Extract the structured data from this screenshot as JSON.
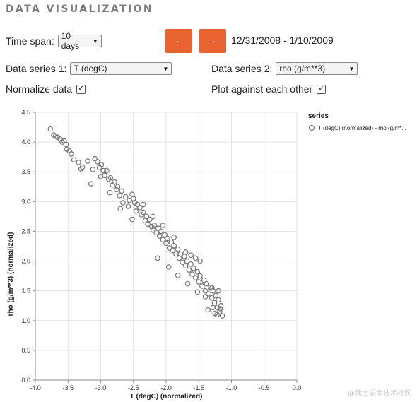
{
  "section_title": "DATA VISUALIZATION",
  "controls": {
    "time_span_label": "Time span:",
    "time_span_value": "10 days",
    "date_range": "12/31/2008 - 1/10/2009",
    "series1_label": "Data series 1:",
    "series1_value": "T (degC)",
    "series2_label": "Data series 2:",
    "series2_value": "rho (g/m**3)",
    "normalize_label": "Normalize data",
    "normalize_checked": true,
    "plot_against_label": "Plot against each other",
    "plot_against_checked": true,
    "prev_icon": "arrow-left-icon",
    "next_icon": "arrow-right-icon",
    "accent_color": "#e8632f"
  },
  "chart_data": {
    "type": "scatter",
    "xlabel": "T (degC) (normalized)",
    "ylabel": "rho (g/m**3) (normalized)",
    "xlim": [
      -4.0,
      0.0
    ],
    "ylim": [
      0.0,
      4.5
    ],
    "xticks": [
      "-4.0",
      "-3.5",
      "-3.0",
      "-2.5",
      "-2.0",
      "-1.5",
      "-1.0",
      "-0.5",
      "0.0"
    ],
    "yticks": [
      "0.0",
      "0.5",
      "1.0",
      "1.5",
      "2.0",
      "2.5",
      "3.0",
      "3.5",
      "4.0",
      "4.5"
    ],
    "grid": true,
    "legend_title": "series",
    "legend_position": "right",
    "marker_color": "#777777",
    "series": [
      {
        "name": "T (degC) (normalized) - rho (g/m*...",
        "points": [
          [
            -3.77,
            4.22
          ],
          [
            -3.72,
            4.12
          ],
          [
            -3.69,
            4.1
          ],
          [
            -3.66,
            4.08
          ],
          [
            -3.62,
            4.05
          ],
          [
            -3.59,
            4.0
          ],
          [
            -3.56,
            4.02
          ],
          [
            -3.53,
            3.96
          ],
          [
            -3.52,
            3.88
          ],
          [
            -3.45,
            3.8
          ],
          [
            -3.41,
            3.7
          ],
          [
            -3.34,
            3.66
          ],
          [
            -3.28,
            3.58
          ],
          [
            -3.2,
            3.68
          ],
          [
            -3.12,
            3.54
          ],
          [
            -3.09,
            3.72
          ],
          [
            -3.05,
            3.67
          ],
          [
            -3.02,
            3.57
          ],
          [
            -2.99,
            3.62
          ],
          [
            -2.96,
            3.52
          ],
          [
            -2.94,
            3.44
          ],
          [
            -2.91,
            3.52
          ],
          [
            -2.88,
            3.38
          ],
          [
            -2.85,
            3.4
          ],
          [
            -2.82,
            3.28
          ],
          [
            -2.79,
            3.33
          ],
          [
            -2.76,
            3.2
          ],
          [
            -2.74,
            3.25
          ],
          [
            -2.71,
            3.1
          ],
          [
            -2.68,
            3.18
          ],
          [
            -2.66,
            2.98
          ],
          [
            -2.62,
            3.08
          ],
          [
            -2.58,
            2.92
          ],
          [
            -2.56,
            3.02
          ],
          [
            -2.52,
            3.12
          ],
          [
            -2.5,
            3.05
          ],
          [
            -2.48,
            2.98
          ],
          [
            -2.46,
            2.84
          ],
          [
            -2.44,
            2.95
          ],
          [
            -2.4,
            2.9
          ],
          [
            -2.38,
            2.78
          ],
          [
            -2.35,
            2.82
          ],
          [
            -2.32,
            2.68
          ],
          [
            -2.3,
            2.75
          ],
          [
            -2.28,
            2.62
          ],
          [
            -2.25,
            2.7
          ],
          [
            -2.22,
            2.58
          ],
          [
            -2.2,
            2.52
          ],
          [
            -2.18,
            2.6
          ],
          [
            -2.15,
            2.48
          ],
          [
            -2.12,
            2.55
          ],
          [
            -2.1,
            2.42
          ],
          [
            -2.08,
            2.5
          ],
          [
            -2.05,
            2.36
          ],
          [
            -2.02,
            2.44
          ],
          [
            -2.0,
            2.3
          ],
          [
            -1.98,
            2.38
          ],
          [
            -1.95,
            2.22
          ],
          [
            -1.92,
            2.32
          ],
          [
            -1.9,
            2.18
          ],
          [
            -1.88,
            2.26
          ],
          [
            -1.85,
            2.12
          ],
          [
            -1.82,
            2.2
          ],
          [
            -1.8,
            2.05
          ],
          [
            -1.78,
            2.12
          ],
          [
            -1.75,
            1.98
          ],
          [
            -1.72,
            2.08
          ],
          [
            -1.7,
            1.92
          ],
          [
            -1.68,
            2.0
          ],
          [
            -1.65,
            1.85
          ],
          [
            -1.62,
            1.95
          ],
          [
            -1.6,
            1.78
          ],
          [
            -1.58,
            1.88
          ],
          [
            -1.55,
            1.72
          ],
          [
            -1.52,
            1.82
          ],
          [
            -1.5,
            1.65
          ],
          [
            -1.48,
            1.75
          ],
          [
            -1.45,
            1.58
          ],
          [
            -1.42,
            1.68
          ],
          [
            -1.4,
            1.5
          ],
          [
            -1.38,
            1.62
          ],
          [
            -1.35,
            1.45
          ],
          [
            -1.32,
            1.56
          ],
          [
            -1.3,
            1.38
          ],
          [
            -1.28,
            1.5
          ],
          [
            -1.26,
            1.3
          ],
          [
            -1.24,
            1.42
          ],
          [
            -1.22,
            1.22
          ],
          [
            -1.2,
            1.35
          ],
          [
            -1.18,
            1.15
          ],
          [
            -1.16,
            1.25
          ],
          [
            -1.14,
            1.08
          ],
          [
            -1.2,
            1.5
          ],
          [
            -1.25,
            1.12
          ],
          [
            -1.3,
            1.55
          ],
          [
            -1.48,
            2.0
          ],
          [
            -1.55,
            2.05
          ],
          [
            -1.62,
            2.1
          ],
          [
            -1.7,
            2.15
          ],
          [
            -1.88,
            2.4
          ],
          [
            -2.05,
            2.6
          ],
          [
            -2.2,
            2.75
          ],
          [
            -2.35,
            2.95
          ],
          [
            -2.52,
            2.7
          ],
          [
            -2.7,
            2.88
          ],
          [
            -2.86,
            3.15
          ],
          [
            -3.0,
            3.42
          ],
          [
            -3.15,
            3.3
          ],
          [
            -3.3,
            3.55
          ],
          [
            -3.48,
            3.85
          ],
          [
            -2.13,
            2.05
          ],
          [
            -1.96,
            1.9
          ],
          [
            -1.82,
            1.76
          ],
          [
            -1.67,
            1.62
          ],
          [
            -1.52,
            1.48
          ],
          [
            -1.4,
            1.4
          ],
          [
            -1.36,
            1.18
          ],
          [
            -1.28,
            1.22
          ],
          [
            -1.22,
            1.1
          ],
          [
            -1.17,
            1.2
          ]
        ]
      }
    ]
  },
  "watermark": "@稀土掘金技术社区"
}
